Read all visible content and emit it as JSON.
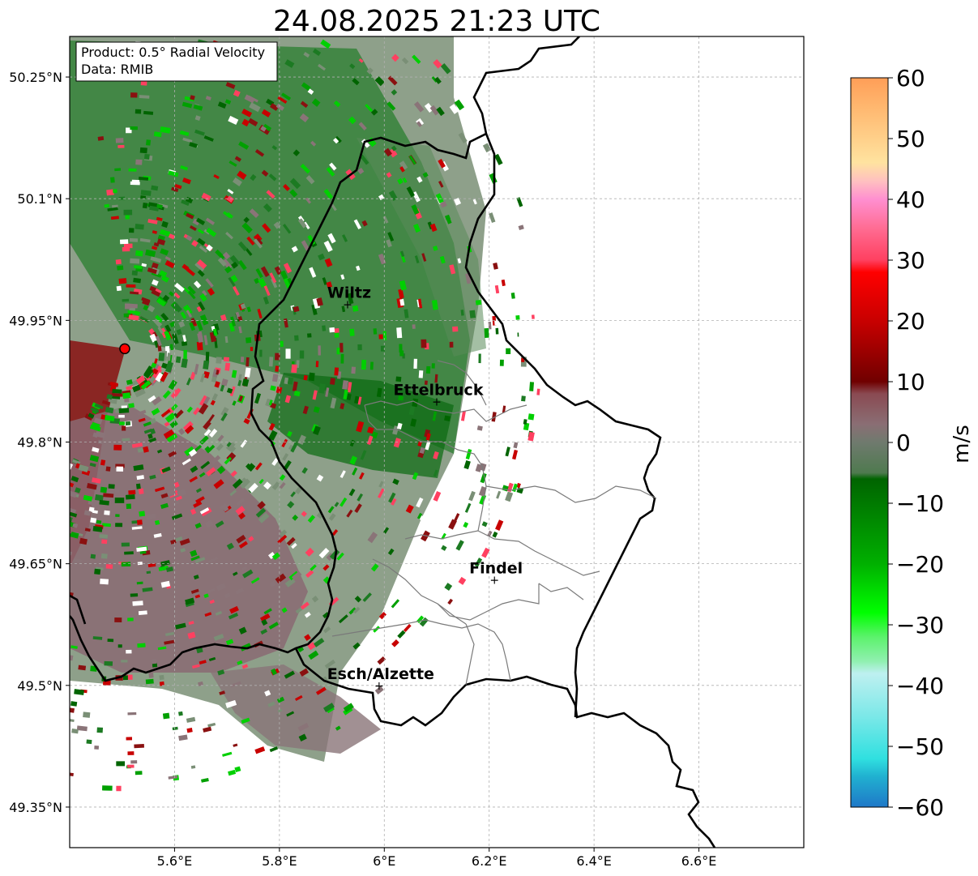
{
  "title": "24.08.2025 21:23 UTC",
  "info_box": {
    "product": "Product: 0.5° Radial Velocity",
    "data": "Data: RMIB"
  },
  "axes": {
    "lon_ticks": [
      "5.6°E",
      "5.8°E",
      "6°E",
      "6.2°E",
      "6.4°E",
      "6.6°E"
    ],
    "lat_ticks": [
      "50.25°N",
      "50.1°N",
      "49.95°N",
      "49.8°N",
      "49.65°N",
      "49.5°N",
      "49.35°N"
    ],
    "lon_values": [
      5.6,
      5.8,
      6.0,
      6.2,
      6.4,
      6.6
    ],
    "lat_values": [
      50.25,
      50.1,
      49.95,
      49.8,
      49.65,
      49.5,
      49.35
    ],
    "lon_range": [
      5.4,
      6.8
    ],
    "lat_range": [
      49.3,
      50.3
    ],
    "grid": true
  },
  "cities": [
    {
      "name": "Wiltz",
      "lon": 5.93,
      "lat": 49.97
    },
    {
      "name": "Ettelbruck",
      "lon": 6.1,
      "lat": 49.85
    },
    {
      "name": "Findel",
      "lon": 6.21,
      "lat": 49.63
    },
    {
      "name": "Esch/Alzette",
      "lon": 5.99,
      "lat": 49.5
    }
  ],
  "radar_site": {
    "lon": 5.505,
    "lat": 49.915,
    "color": "#ff0000"
  },
  "colorbar": {
    "label": "m/s",
    "min": -60,
    "max": 60,
    "ticks": [
      "60",
      "50",
      "40",
      "30",
      "20",
      "10",
      "0",
      "−10",
      "−20",
      "−30",
      "−40",
      "−50",
      "−60"
    ],
    "tick_values": [
      60,
      50,
      40,
      30,
      20,
      10,
      0,
      -10,
      -20,
      -30,
      -40,
      -50,
      -60
    ],
    "stops": [
      {
        "v": 60,
        "c": "#ff9e57"
      },
      {
        "v": 55,
        "c": "#ffb870"
      },
      {
        "v": 50,
        "c": "#ffd08a"
      },
      {
        "v": 46,
        "c": "#ffe3a0"
      },
      {
        "v": 43,
        "c": "#ffc0c0"
      },
      {
        "v": 40,
        "c": "#ff8fd0"
      },
      {
        "v": 35,
        "c": "#ff6a90"
      },
      {
        "v": 30,
        "c": "#ff4060"
      },
      {
        "v": 28,
        "c": "#ff0000"
      },
      {
        "v": 20,
        "c": "#c80000"
      },
      {
        "v": 10,
        "c": "#700000"
      },
      {
        "v": 8,
        "c": "#8a4a52"
      },
      {
        "v": 3,
        "c": "#8a6e74"
      },
      {
        "v": 0,
        "c": "#6f7a6e"
      },
      {
        "v": -5,
        "c": "#4f7a4f"
      },
      {
        "v": -6,
        "c": "#006400"
      },
      {
        "v": -20,
        "c": "#00b000"
      },
      {
        "v": -28,
        "c": "#00ff00"
      },
      {
        "v": -32,
        "c": "#5cf26c"
      },
      {
        "v": -36,
        "c": "#90f0b0"
      },
      {
        "v": -38,
        "c": "#bef0f0"
      },
      {
        "v": -45,
        "c": "#7ce8e8"
      },
      {
        "v": -52,
        "c": "#30e0e0"
      },
      {
        "v": -55,
        "c": "#20b0d0"
      },
      {
        "v": -60,
        "c": "#1f78c8"
      }
    ]
  }
}
